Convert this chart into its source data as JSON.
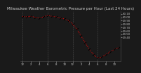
{
  "title": "Milwaukee Weather Barometric Pressure per Hour (Last 24 Hours)",
  "background_color": "#1a1a1a",
  "plot_bg_color": "#1a1a1a",
  "grid_color": "#555555",
  "line_color": "#ff0000",
  "marker_color": "#000000",
  "text_color": "#cccccc",
  "hours": [
    0,
    1,
    2,
    3,
    4,
    5,
    6,
    7,
    8,
    9,
    10,
    11,
    12,
    13,
    14,
    15,
    16,
    17,
    18,
    19,
    20,
    21,
    22,
    23
  ],
  "pressure": [
    30.02,
    30.01,
    30.03,
    30.0,
    29.98,
    30.01,
    30.05,
    30.03,
    30.01,
    29.98,
    29.95,
    29.9,
    29.8,
    29.65,
    29.45,
    29.25,
    29.05,
    28.9,
    28.8,
    28.82,
    28.9,
    28.98,
    29.05,
    29.1
  ],
  "ylim_min": 28.7,
  "ylim_max": 30.18,
  "yticks": [
    29.4,
    29.5,
    29.6,
    29.7,
    29.8,
    29.9,
    30.0,
    30.1
  ],
  "ytick_labels": [
    "29.40",
    "29.50",
    "29.60",
    "29.70",
    "29.80",
    "29.90",
    "30.00",
    "30.10"
  ],
  "title_fontsize": 4.0,
  "tick_fontsize": 2.8,
  "grid_every": 6
}
